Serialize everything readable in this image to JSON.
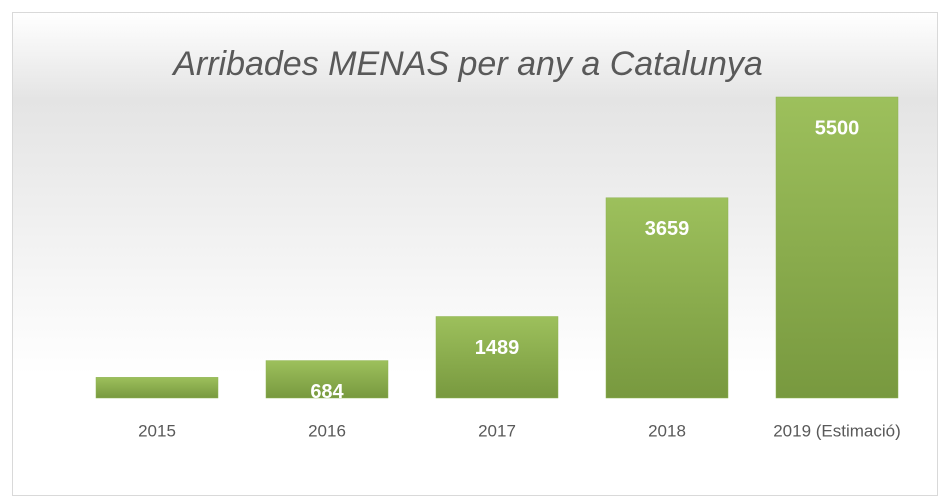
{
  "chart_data": {
    "type": "bar",
    "title": "Arribades MENAS per any a Catalunya",
    "categories": [
      "2015",
      "2016",
      "2017",
      "2018",
      "2019 (Estimació)"
    ],
    "values": [
      377,
      684,
      1489,
      3659,
      5500
    ],
    "color": "#8db350"
  }
}
